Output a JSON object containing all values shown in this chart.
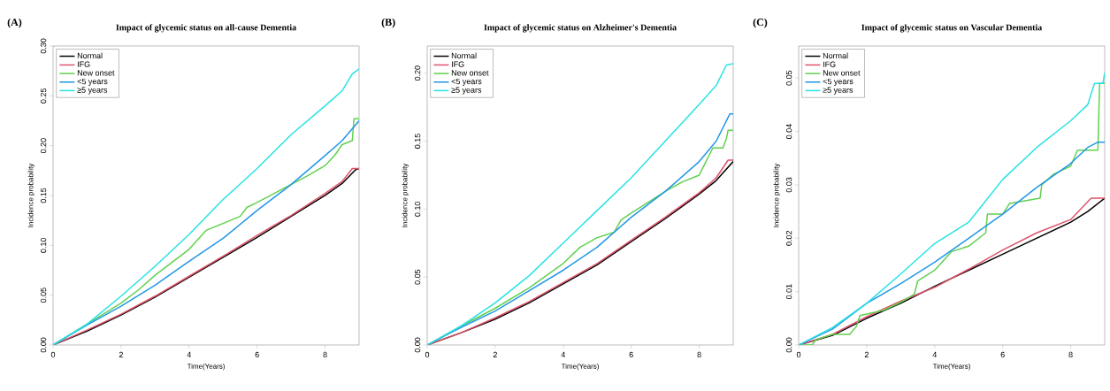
{
  "chart_data": [
    {
      "type": "line",
      "title": "Impact of glycemic status on all-cause Dementia",
      "annotations": [
        "(A)"
      ],
      "xlabel": "Time(Years)",
      "ylabel": "Incidence probability",
      "xlim": [
        0,
        9
      ],
      "ylim": [
        0,
        0.3
      ],
      "xticks": [
        0,
        2,
        4,
        6,
        8
      ],
      "yticks": [
        {
          "value": 0,
          "label": "0.00"
        },
        {
          "value": 0.05,
          "label": "0.05"
        },
        {
          "value": 0.1,
          "label": "0.10"
        },
        {
          "value": 0.15,
          "label": "0.15"
        },
        {
          "value": 0.2,
          "label": "0.20"
        },
        {
          "value": 0.25,
          "label": "0.25"
        },
        {
          "value": 0.3,
          "label": "0.30"
        }
      ],
      "legend": "top left",
      "series": [
        {
          "name": "Normal",
          "color": "#000000",
          "x": [
            0,
            1,
            2,
            3,
            4,
            5,
            6,
            7,
            8,
            8.5,
            8.9,
            9
          ],
          "values": [
            0,
            0.014,
            0.03,
            0.048,
            0.068,
            0.088,
            0.108,
            0.129,
            0.15,
            0.162,
            0.176,
            0.177
          ]
        },
        {
          "name": "IFG",
          "color": "#df536b",
          "x": [
            0,
            1,
            2,
            3,
            4,
            5,
            6,
            7,
            8,
            8.5,
            8.8,
            9
          ],
          "values": [
            0,
            0.015,
            0.031,
            0.049,
            0.069,
            0.089,
            0.11,
            0.13,
            0.152,
            0.164,
            0.177,
            0.177
          ]
        },
        {
          "name": "New onset",
          "color": "#61d04f",
          "x": [
            0,
            1,
            2,
            2.5,
            3,
            4,
            4.5,
            5,
            5.5,
            5.7,
            6,
            7,
            7.5,
            8,
            8.3,
            8.5,
            8.8,
            8.85,
            9
          ],
          "values": [
            0,
            0.021,
            0.042,
            0.055,
            0.07,
            0.096,
            0.115,
            0.122,
            0.129,
            0.138,
            0.143,
            0.161,
            0.17,
            0.18,
            0.191,
            0.201,
            0.205,
            0.227,
            0.227
          ]
        },
        {
          "name": "<5 years",
          "color": "#2297e6",
          "x": [
            0,
            1,
            2,
            3,
            4,
            5,
            6,
            7,
            8,
            8.5,
            9
          ],
          "values": [
            0,
            0.02,
            0.039,
            0.06,
            0.084,
            0.107,
            0.135,
            0.161,
            0.19,
            0.205,
            0.225
          ]
        },
        {
          "name": "≥5 years",
          "color": "#28e2e5",
          "x": [
            0,
            1,
            2,
            3,
            4,
            5,
            6,
            7,
            8,
            8.5,
            8.8,
            9
          ],
          "values": [
            0,
            0.021,
            0.049,
            0.079,
            0.111,
            0.146,
            0.177,
            0.211,
            0.24,
            0.255,
            0.272,
            0.277
          ]
        }
      ]
    },
    {
      "type": "line",
      "title": "Impact of glycemic status on Alzheimer's Dementia",
      "annotations": [
        "(B)"
      ],
      "xlabel": "Time(Years)",
      "ylabel": "Incidence probability",
      "xlim": [
        0,
        9
      ],
      "ylim": [
        0,
        0.22
      ],
      "xticks": [
        0,
        2,
        4,
        6,
        8
      ],
      "yticks": [
        {
          "value": 0,
          "label": "0.00"
        },
        {
          "value": 0.05,
          "label": "0.05"
        },
        {
          "value": 0.1,
          "label": "0.10"
        },
        {
          "value": 0.15,
          "label": "0.15"
        },
        {
          "value": 0.2,
          "label": "0.20"
        }
      ],
      "legend": "top left",
      "series": [
        {
          "name": "Normal",
          "color": "#000000",
          "x": [
            0,
            1,
            2,
            3,
            4,
            5,
            6,
            7,
            8,
            8.5,
            9
          ],
          "values": [
            0,
            0.009,
            0.019,
            0.031,
            0.045,
            0.059,
            0.076,
            0.093,
            0.111,
            0.121,
            0.135
          ]
        },
        {
          "name": "IFG",
          "color": "#df536b",
          "x": [
            0,
            1,
            2,
            3,
            4,
            5,
            6,
            7,
            8,
            8.5,
            8.85,
            9
          ],
          "values": [
            0,
            0.009,
            0.02,
            0.032,
            0.046,
            0.06,
            0.077,
            0.094,
            0.112,
            0.123,
            0.136,
            0.136
          ]
        },
        {
          "name": "New onset",
          "color": "#61d04f",
          "x": [
            0,
            1,
            2,
            3,
            4,
            4.5,
            5,
            5.5,
            5.7,
            6,
            7,
            7.5,
            8,
            8.4,
            8.7,
            8.8,
            8.85,
            9
          ],
          "values": [
            0,
            0.014,
            0.027,
            0.042,
            0.06,
            0.072,
            0.079,
            0.083,
            0.092,
            0.097,
            0.113,
            0.12,
            0.125,
            0.145,
            0.145,
            0.152,
            0.158,
            0.158
          ]
        },
        {
          "name": "<5 years",
          "color": "#2297e6",
          "x": [
            0,
            1,
            2,
            3,
            4,
            5,
            6,
            7,
            8,
            8.5,
            8.9,
            9
          ],
          "values": [
            0,
            0.013,
            0.025,
            0.04,
            0.055,
            0.072,
            0.094,
            0.113,
            0.135,
            0.15,
            0.17,
            0.17
          ]
        },
        {
          "name": "≥5 years",
          "color": "#28e2e5",
          "x": [
            0,
            1,
            2,
            3,
            4,
            5,
            6,
            7,
            8,
            8.5,
            8.8,
            9
          ],
          "values": [
            0,
            0.014,
            0.031,
            0.051,
            0.075,
            0.099,
            0.123,
            0.15,
            0.177,
            0.191,
            0.206,
            0.207
          ]
        }
      ]
    },
    {
      "type": "line",
      "title": "Impact of glycemic status on Vascular Dementia",
      "annotations": [
        "(C)"
      ],
      "xlabel": "Time(Years)",
      "ylabel": "Incidence probability",
      "xlim": [
        0,
        9
      ],
      "ylim": [
        0,
        0.056
      ],
      "xticks": [
        0,
        2,
        4,
        6,
        8
      ],
      "yticks": [
        {
          "value": 0,
          "label": "0.00"
        },
        {
          "value": 0.01,
          "label": "0.01"
        },
        {
          "value": 0.02,
          "label": "0.02"
        },
        {
          "value": 0.03,
          "label": "0.03"
        },
        {
          "value": 0.04,
          "label": "0.04"
        },
        {
          "value": 0.05,
          "label": "0.05"
        }
      ],
      "legend": "top left",
      "series": [
        {
          "name": "Normal",
          "color": "#000000",
          "x": [
            0,
            1,
            2,
            3,
            4,
            5,
            6,
            7,
            8,
            8.5,
            9
          ],
          "values": [
            0,
            0.0018,
            0.005,
            0.0078,
            0.011,
            0.014,
            0.017,
            0.02,
            0.023,
            0.025,
            0.0275
          ]
        },
        {
          "name": "IFG",
          "color": "#df536b",
          "x": [
            0,
            1,
            2,
            3,
            4,
            5,
            6,
            7,
            8,
            8.6,
            9
          ],
          "values": [
            0,
            0.002,
            0.0053,
            0.0082,
            0.0108,
            0.0142,
            0.0178,
            0.021,
            0.0235,
            0.0275,
            0.0275
          ]
        },
        {
          "name": "New onset",
          "color": "#61d04f",
          "x": [
            0,
            0.4,
            0.5,
            1,
            1.5,
            1.7,
            1.8,
            2.5,
            3,
            3.4,
            3.5,
            4,
            4.5,
            5,
            5.5,
            5.55,
            6,
            6.2,
            7.1,
            7.15,
            7.5,
            8,
            8.2,
            8.8,
            8.85,
            9
          ],
          "values": [
            0,
            0,
            0.001,
            0.002,
            0.002,
            0.0035,
            0.0055,
            0.0065,
            0.008,
            0.0095,
            0.012,
            0.014,
            0.0175,
            0.0185,
            0.021,
            0.0245,
            0.0245,
            0.0265,
            0.0275,
            0.03,
            0.032,
            0.0335,
            0.0365,
            0.0365,
            0.049,
            0.049
          ]
        },
        {
          "name": "<5 years",
          "color": "#2297e6",
          "x": [
            0,
            1,
            2,
            3,
            4,
            5,
            6,
            7,
            8,
            8.5,
            8.8,
            9
          ],
          "values": [
            0,
            0.003,
            0.0078,
            0.0115,
            0.0155,
            0.02,
            0.0245,
            0.0295,
            0.034,
            0.037,
            0.038,
            0.038
          ]
        },
        {
          "name": "≥5 years",
          "color": "#28e2e5",
          "x": [
            0,
            1,
            2,
            3,
            4,
            5,
            5.5,
            6,
            7,
            8,
            8.5,
            8.7,
            8.95,
            9
          ],
          "values": [
            0,
            0.0033,
            0.0078,
            0.0133,
            0.019,
            0.023,
            0.027,
            0.031,
            0.037,
            0.042,
            0.045,
            0.049,
            0.049,
            0.051
          ]
        }
      ]
    }
  ]
}
